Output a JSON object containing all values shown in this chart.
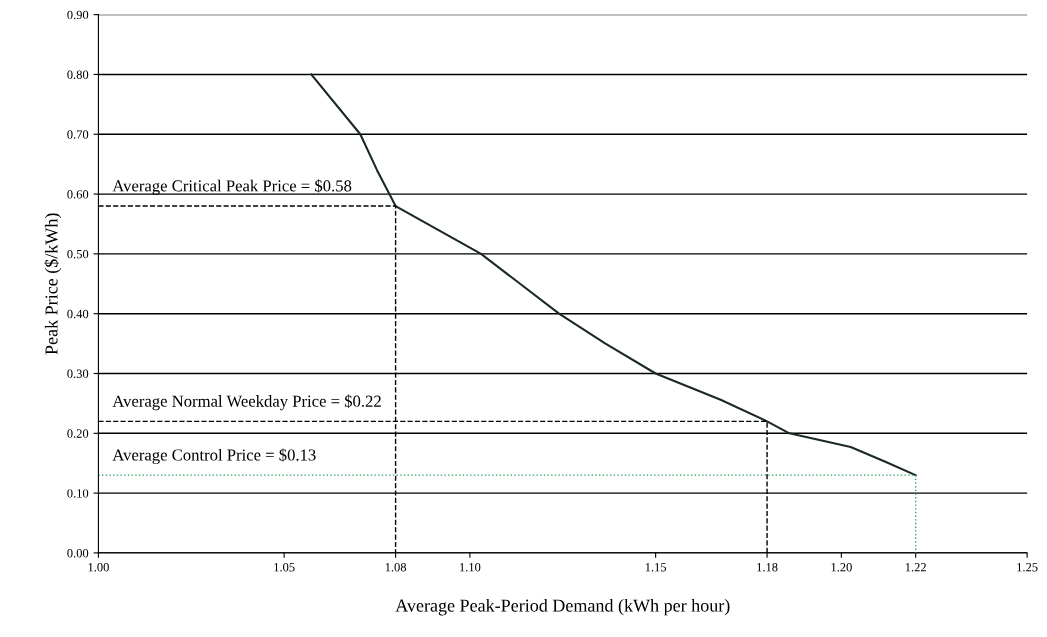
{
  "chart_data": {
    "type": "line",
    "xlabel": "Average Peak-Period Demand (kWh per hour)",
    "ylabel": "Peak Price ($/kWh)",
    "xlim": [
      1.0,
      1.25
    ],
    "ylim": [
      0,
      0.9
    ],
    "grid": "y",
    "xticks": [
      {
        "value": 1.0,
        "label": "1.00"
      },
      {
        "value": 1.05,
        "label": "1.05"
      },
      {
        "value": 1.08,
        "label": "1.08"
      },
      {
        "value": 1.1,
        "label": "1.10"
      },
      {
        "value": 1.15,
        "label": "1.15"
      },
      {
        "value": 1.18,
        "label": "1.18"
      },
      {
        "value": 1.2,
        "label": "1.20"
      },
      {
        "value": 1.22,
        "label": "1.22"
      },
      {
        "value": 1.25,
        "label": "1.25"
      }
    ],
    "yticks": [
      {
        "value": 0,
        "label": "0.00"
      },
      {
        "value": 0.1,
        "label": "0.10"
      },
      {
        "value": 0.2,
        "label": "0.20"
      },
      {
        "value": 0.3,
        "label": "0.30"
      },
      {
        "value": 0.4,
        "label": "0.40"
      },
      {
        "value": 0.5,
        "label": "0.50"
      },
      {
        "value": 0.6,
        "label": "0.60"
      },
      {
        "value": 0.7,
        "label": "0.70"
      },
      {
        "value": 0.8,
        "label": "0.80"
      },
      {
        "value": 0.9,
        "label": "0.90"
      }
    ],
    "series": [
      {
        "color": "#1a2a20",
        "line_style": "solid",
        "x": [
          1.0573,
          1.0705,
          1.075,
          1.08,
          1.103,
          1.1135,
          1.124,
          1.1365,
          1.15,
          1.1675,
          1.18,
          1.186,
          1.2025,
          1.212,
          1.22
        ],
        "values": [
          0.8,
          0.7,
          0.64,
          0.58,
          0.5,
          0.45,
          0.4,
          0.35,
          0.3,
          0.256,
          0.22,
          0.2,
          0.177,
          0.152,
          0.13
        ]
      },
      {
        "color": "#000000",
        "line_style": "dashed",
        "x": [
          1.0,
          1.08,
          1.08
        ],
        "values": [
          0.58,
          0.58,
          0
        ]
      },
      {
        "color": "#000000",
        "line_style": "dashed",
        "x": [
          1.0,
          1.18,
          1.18
        ],
        "values": [
          0.22,
          0.22,
          0
        ]
      },
      {
        "color": "#2e9e5a",
        "line_style": "dotted",
        "x": [
          1.0,
          1.22,
          1.22
        ],
        "values": [
          0.13,
          0.13,
          0
        ]
      }
    ],
    "annotations": [
      "Average Critical Peak Price = $0.58",
      "Average Normal Weekday Price = $0.22",
      "Average Control Price = $0.13"
    ]
  }
}
